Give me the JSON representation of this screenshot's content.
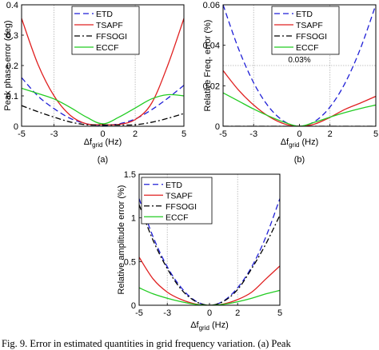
{
  "caption": "Fig. 9.    Error in estimated quantities in grid frequency variation. (a) Peak",
  "panel_labels": [
    "(a)",
    "(b)"
  ],
  "series_styles": [
    {
      "name": "ETD",
      "color": "#1f1fd6",
      "dash": "dashed"
    },
    {
      "name": "TSAPF",
      "color": "#e02020",
      "dash": "solid"
    },
    {
      "name": "FFSOGI",
      "color": "#000000",
      "dash": "dashdot"
    },
    {
      "name": "ECCF",
      "color": "#22cc22",
      "dash": "solid"
    }
  ],
  "chart_data": [
    {
      "type": "line",
      "panel": "(a)",
      "ylabel": "Peak phase error (deg)",
      "xlabel": "Δf",
      "xlabel_sub": "grid",
      "xlabel_unit": " (Hz)",
      "xlim": [
        -5,
        5
      ],
      "ylim": [
        0,
        0.4
      ],
      "xticks": [
        -5,
        -3,
        0,
        2,
        5
      ],
      "yticks": [
        0,
        0.1,
        0.2,
        0.3,
        0.4
      ],
      "ytick_labels": [
        "0",
        "0.1",
        "0.2",
        "0.3",
        "0.4"
      ],
      "vlines": [
        -3,
        2
      ],
      "hline": null,
      "annotation": null,
      "legend": "top-right",
      "x": [
        -5,
        -4,
        -3,
        -2,
        -1,
        0,
        1,
        2,
        3,
        4,
        5
      ],
      "series": [
        {
          "name": "ETD",
          "values": [
            0.16,
            0.1,
            0.058,
            0.026,
            0.008,
            0.003,
            0.008,
            0.024,
            0.054,
            0.092,
            0.135
          ]
        },
        {
          "name": "TSAPF",
          "values": [
            0.355,
            0.205,
            0.1,
            0.036,
            0.008,
            0.005,
            0.006,
            0.022,
            0.075,
            0.2,
            0.355
          ]
        },
        {
          "name": "FFSOGI",
          "values": [
            0.068,
            0.048,
            0.03,
            0.014,
            0.005,
            0.004,
            0.004,
            0.005,
            0.013,
            0.026,
            0.042
          ]
        },
        {
          "name": "ECCF",
          "values": [
            0.125,
            0.108,
            0.09,
            0.062,
            0.03,
            0.008,
            0.03,
            0.06,
            0.09,
            0.104,
            0.1
          ]
        }
      ]
    },
    {
      "type": "line",
      "panel": "(b)",
      "ylabel": "Relative Freq. error (%)",
      "xlabel": "Δf",
      "xlabel_sub": "grid",
      "xlabel_unit": " (Hz)",
      "xlim": [
        -5,
        5
      ],
      "ylim": [
        0,
        0.06
      ],
      "xticks": [
        -5,
        -3,
        0,
        2,
        5
      ],
      "yticks": [
        0,
        0.02,
        0.04,
        0.06
      ],
      "ytick_labels": [
        "0",
        "0.02",
        "0.04",
        "0.06"
      ],
      "vlines": [
        -3,
        2
      ],
      "hline": 0.03,
      "annotation": "0.03%",
      "legend": "top-right",
      "x": [
        -5,
        -4,
        -3,
        -2,
        -1,
        0,
        1,
        2,
        3,
        4,
        5
      ],
      "series": [
        {
          "name": "ETD",
          "values": [
            0.06,
            0.0385,
            0.0215,
            0.0095,
            0.0024,
            0.0,
            0.0024,
            0.0095,
            0.0215,
            0.0385,
            0.06
          ]
        },
        {
          "name": "TSAPF",
          "values": [
            0.0275,
            0.018,
            0.0105,
            0.0048,
            0.0012,
            0.0,
            0.0011,
            0.0044,
            0.0084,
            0.0115,
            0.0148
          ]
        },
        {
          "name": "FFSOGI",
          "values": [
            0.0,
            0.0,
            0.0,
            0.0,
            0.0,
            0.0,
            0.0,
            0.0,
            0.0,
            0.0,
            0.0
          ]
        },
        {
          "name": "ECCF",
          "values": [
            0.0165,
            0.0125,
            0.0085,
            0.005,
            0.002,
            0.0,
            0.002,
            0.0045,
            0.0068,
            0.0088,
            0.0105
          ]
        }
      ]
    },
    {
      "type": "line",
      "panel": "",
      "ylabel": "Relative amplitude error (%)",
      "xlabel": "Δf",
      "xlabel_sub": "grid",
      "xlabel_unit": " (Hz)",
      "xlim": [
        -5,
        5
      ],
      "ylim": [
        0,
        1.5
      ],
      "xticks": [
        -5,
        -3,
        0,
        2,
        5
      ],
      "yticks": [
        0,
        0.5,
        1,
        1.5
      ],
      "ytick_labels": [
        "0",
        "0.5",
        "1",
        "1.5"
      ],
      "vlines": [
        -3,
        2
      ],
      "hline": null,
      "annotation": null,
      "legend": "top-left",
      "x": [
        -5,
        -4,
        -3,
        -2,
        -1,
        0,
        1,
        2,
        3,
        4,
        5
      ],
      "series": [
        {
          "name": "ETD",
          "values": [
            1.22,
            0.78,
            0.44,
            0.2,
            0.05,
            0.0,
            0.05,
            0.2,
            0.44,
            0.78,
            1.22
          ]
        },
        {
          "name": "TSAPF",
          "values": [
            0.55,
            0.3,
            0.15,
            0.065,
            0.015,
            0.0,
            0.015,
            0.065,
            0.15,
            0.3,
            0.45
          ]
        },
        {
          "name": "FFSOGI",
          "values": [
            1.15,
            0.74,
            0.42,
            0.18,
            0.045,
            0.0,
            0.045,
            0.18,
            0.42,
            0.7,
            1.03
          ]
        },
        {
          "name": "ECCF",
          "values": [
            0.2,
            0.13,
            0.08,
            0.04,
            0.01,
            0.0,
            0.01,
            0.04,
            0.08,
            0.13,
            0.17
          ]
        }
      ]
    }
  ]
}
